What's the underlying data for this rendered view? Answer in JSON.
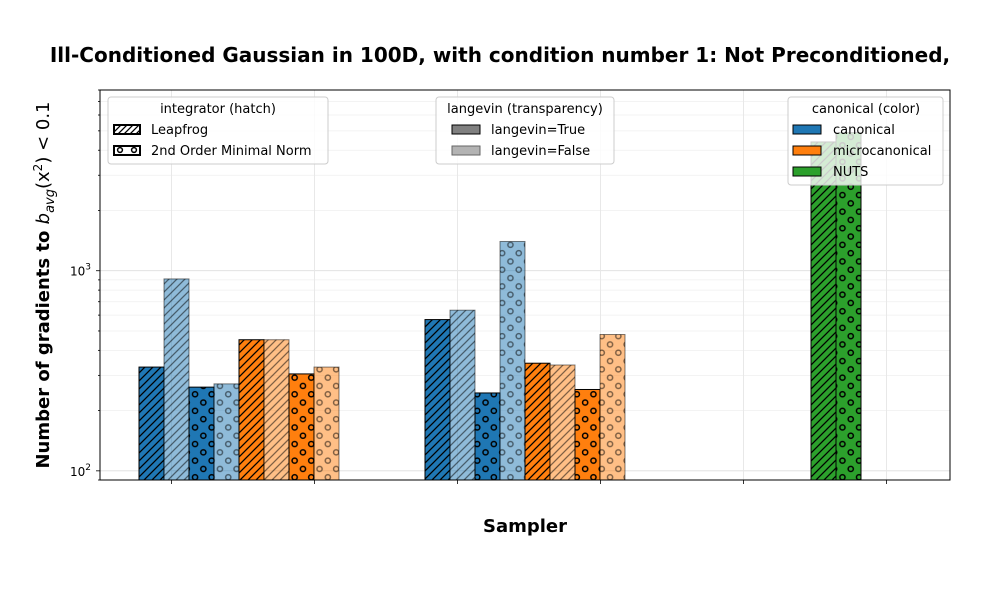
{
  "chart_data": {
    "type": "bar",
    "title": "Ill-Conditioned Gaussian in 100D, with condition number 1: Not Preconditioned,",
    "xlabel": "Sampler",
    "ylabel": "Number of gradients to b_avg(x²) < 0.1",
    "ylabel_parts": {
      "prefix": "Number of gradients to ",
      "b": "b",
      "sub": "avg",
      "mid": "(x",
      "sup": "2",
      "suffix": ") < 0.1"
    },
    "yscale": "log",
    "ylim": [
      90,
      8000
    ],
    "y_ticks": [
      {
        "value": 100,
        "base": "10",
        "exp": "2"
      },
      {
        "value": 1000,
        "base": "10",
        "exp": "3"
      }
    ],
    "grid": true,
    "groups": [
      {
        "bars": [
          {
            "canonical": "canonical",
            "integrator": "Leapfrog",
            "langevin": "langevin=True",
            "value": 330
          },
          {
            "canonical": "canonical",
            "integrator": "Leapfrog",
            "langevin": "langevin=False",
            "value": 910
          },
          {
            "canonical": "canonical",
            "integrator": "2nd Order Minimal Norm",
            "langevin": "langevin=True",
            "value": 262
          },
          {
            "canonical": "canonical",
            "integrator": "2nd Order Minimal Norm",
            "langevin": "langevin=False",
            "value": 272
          },
          {
            "canonical": "microcanonical",
            "integrator": "Leapfrog",
            "langevin": "langevin=True",
            "value": 452
          },
          {
            "canonical": "microcanonical",
            "integrator": "Leapfrog",
            "langevin": "langevin=False",
            "value": 452
          },
          {
            "canonical": "microcanonical",
            "integrator": "2nd Order Minimal Norm",
            "langevin": "langevin=True",
            "value": 305
          },
          {
            "canonical": "microcanonical",
            "integrator": "2nd Order Minimal Norm",
            "langevin": "langevin=False",
            "value": 330
          }
        ]
      },
      {
        "bars": [
          {
            "canonical": "canonical",
            "integrator": "Leapfrog",
            "langevin": "langevin=True",
            "value": 570
          },
          {
            "canonical": "canonical",
            "integrator": "Leapfrog",
            "langevin": "langevin=False",
            "value": 635
          },
          {
            "canonical": "canonical",
            "integrator": "2nd Order Minimal Norm",
            "langevin": "langevin=True",
            "value": 245
          },
          {
            "canonical": "canonical",
            "integrator": "2nd Order Minimal Norm",
            "langevin": "langevin=False",
            "value": 1400
          },
          {
            "canonical": "microcanonical",
            "integrator": "Leapfrog",
            "langevin": "langevin=True",
            "value": 345
          },
          {
            "canonical": "microcanonical",
            "integrator": "Leapfrog",
            "langevin": "langevin=False",
            "value": 338
          },
          {
            "canonical": "microcanonical",
            "integrator": "2nd Order Minimal Norm",
            "langevin": "langevin=True",
            "value": 255
          },
          {
            "canonical": "microcanonical",
            "integrator": "2nd Order Minimal Norm",
            "langevin": "langevin=False",
            "value": 480
          }
        ]
      },
      {
        "bars": [
          {
            "canonical": "NUTS",
            "integrator": "Leapfrog",
            "langevin": "langevin=True",
            "value": 4400
          },
          {
            "canonical": "NUTS",
            "integrator": "2nd Order Minimal Norm",
            "langevin": "langevin=True",
            "value": 4900
          }
        ]
      }
    ],
    "legends": [
      {
        "title": "integrator (hatch)",
        "position": "top-left",
        "entries": [
          "Leapfrog",
          "2nd Order Minimal Norm"
        ],
        "hatches": [
          "diag",
          "circle"
        ]
      },
      {
        "title": "langevin (transparency)",
        "position": "top-center",
        "entries": [
          "langevin=True",
          "langevin=False"
        ],
        "fills": [
          "#808080",
          "#b3b3b3"
        ]
      },
      {
        "title": "canonical (color)",
        "position": "top-right",
        "entries": [
          "canonical",
          "microcanonical",
          "NUTS"
        ],
        "fills": [
          "#1f77b4",
          "#ff7f0e",
          "#2ca02c"
        ]
      }
    ],
    "colors": {
      "canonical": "#1f77b4",
      "microcanonical": "#ff7f0e",
      "NUTS": "#2ca02c"
    },
    "alpha_false": 0.5
  }
}
